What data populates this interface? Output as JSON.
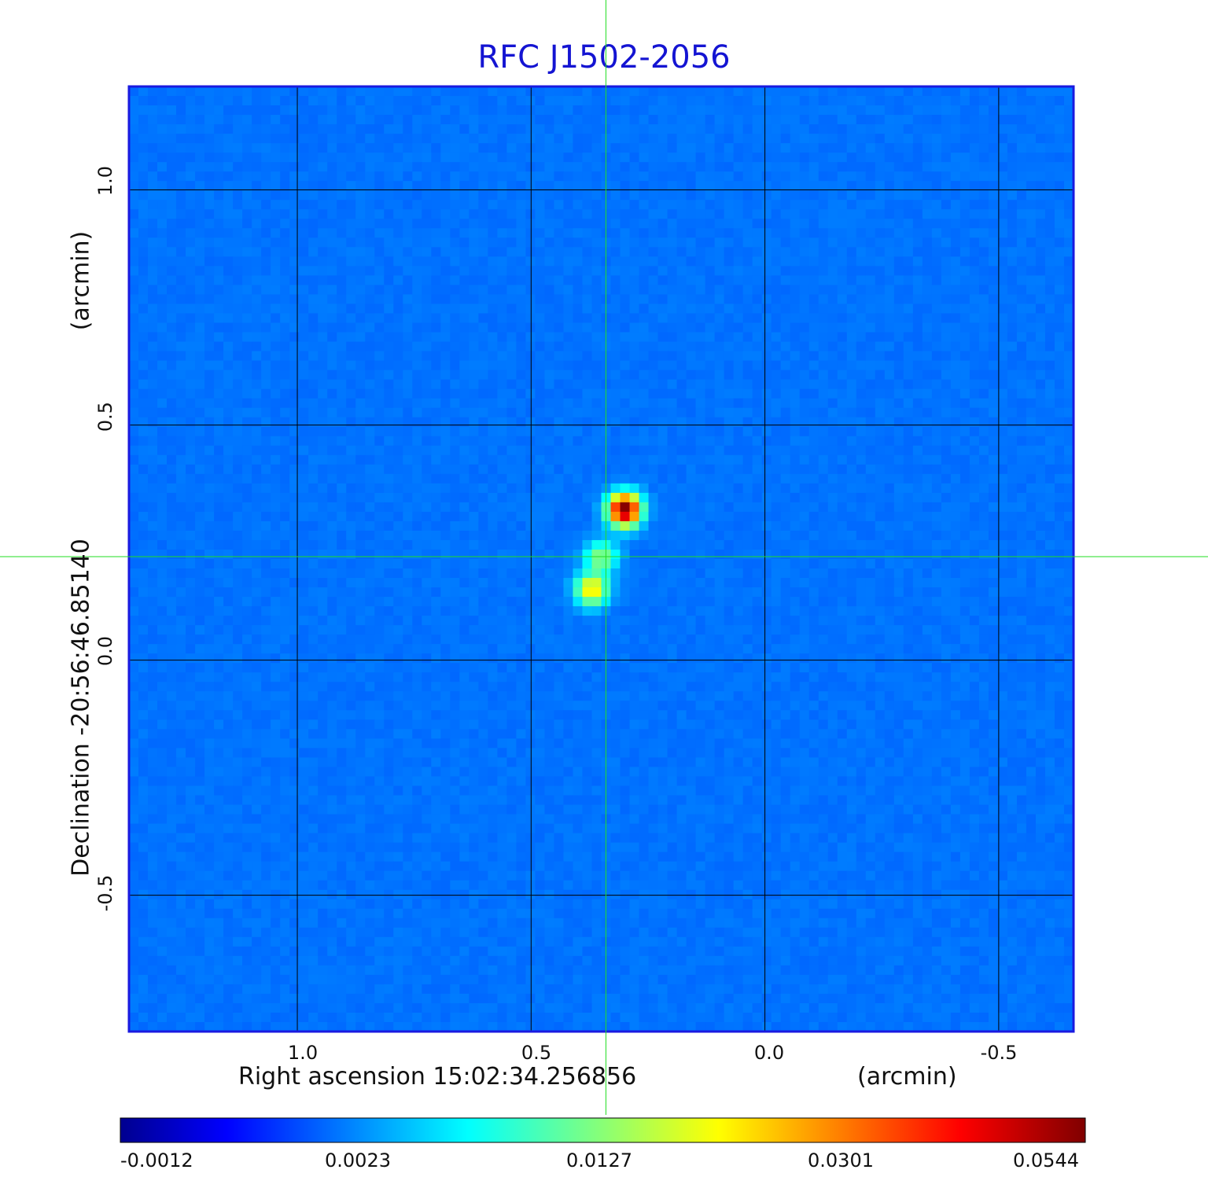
{
  "chart_data": {
    "type": "heatmap",
    "title": "RFC J1502-2056",
    "xlabel": "Right ascension  15:02:34.256856",
    "xunit": "(arcmin)",
    "ylabel": "Declination  -20:56:46.85140",
    "yunit": "(arcmin)",
    "x_ticks": [
      "1.0",
      "0.5",
      "0.0",
      "-0.5"
    ],
    "x_tick_values": [
      1.0,
      0.5,
      0.0,
      -0.5
    ],
    "y_ticks": [
      "1.0",
      "0.5",
      "0.0",
      "-0.5"
    ],
    "y_tick_values": [
      1.0,
      0.5,
      0.0,
      -0.5
    ],
    "xlim": [
      1.36,
      -0.66
    ],
    "ylim": [
      -0.79,
      1.22
    ],
    "grid": true,
    "crosshair": {
      "x": 0.34,
      "y": 0.22
    },
    "colormap": "jet",
    "colorbar_ticks": [
      "-0.0012",
      "0.0023",
      "0.0127",
      "0.0301",
      "0.0544"
    ],
    "colorbar_range": [
      -0.0012,
      0.0544
    ],
    "sources": [
      {
        "x": 0.3,
        "y": 0.32,
        "peak": 0.0544
      },
      {
        "x": 0.35,
        "y": 0.22,
        "peak": 0.016
      },
      {
        "x": 0.37,
        "y": 0.15,
        "peak": 0.026
      }
    ]
  },
  "colors": {
    "title": "#1414d2",
    "frame": "#1a1ae0",
    "crosshair": "#22dd22",
    "grid": "#000000"
  }
}
